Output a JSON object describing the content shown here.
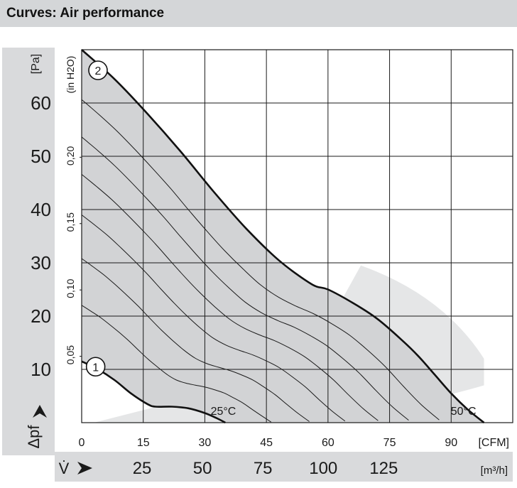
{
  "header": {
    "title": "Curves: Air performance"
  },
  "chart_data": {
    "type": "line",
    "x_axis": {
      "label_unit": "[CFM]",
      "range": [
        0,
        105
      ],
      "ticks": [
        "0",
        "15",
        "30",
        "45",
        "60",
        "75",
        "90"
      ],
      "tick_values": [
        0,
        15,
        30,
        45,
        60,
        75,
        90
      ],
      "secondary_label_unit": "[m³/h]",
      "secondary_ticks": [
        "25",
        "50",
        "75",
        "100",
        "125"
      ],
      "secondary_tick_values": [
        25,
        50,
        75,
        100,
        125
      ],
      "symbol": "V̇"
    },
    "y_axis": {
      "label_unit": "[Pa]",
      "range": [
        0,
        70
      ],
      "ticks": [
        "10",
        "20",
        "30",
        "40",
        "50",
        "60"
      ],
      "tick_values": [
        10,
        20,
        30,
        40,
        50,
        60
      ],
      "secondary_label_unit": "(in H2O)",
      "secondary_ticks": [
        "0,05",
        "0,10",
        "0,15",
        "0,20"
      ],
      "secondary_tick_values": [
        0.05,
        0.1,
        0.15,
        0.2
      ],
      "symbol": "Δpf"
    },
    "grid": true,
    "series": [
      {
        "name": "2",
        "x": [
          0,
          8,
          16,
          24,
          32,
          40,
          48,
          56,
          60,
          66,
          72,
          78,
          82,
          86,
          90,
          94,
          98,
          100,
          102
        ],
        "y": [
          70,
          64.5,
          58,
          51,
          43.5,
          36.5,
          30.5,
          26,
          25,
          22.5,
          19.5,
          15.5,
          12.5,
          9,
          5.5,
          2.5,
          0,
          0,
          0
        ]
      },
      {
        "name": "1",
        "x": [
          0,
          4,
          8,
          12,
          16,
          18,
          22,
          26,
          30,
          33,
          35
        ],
        "y": [
          11.5,
          10,
          8,
          5.5,
          3.5,
          3,
          3,
          2.7,
          1.8,
          0.8,
          0
        ]
      }
    ],
    "annotations": [
      "25°C",
      "50°C"
    ]
  }
}
